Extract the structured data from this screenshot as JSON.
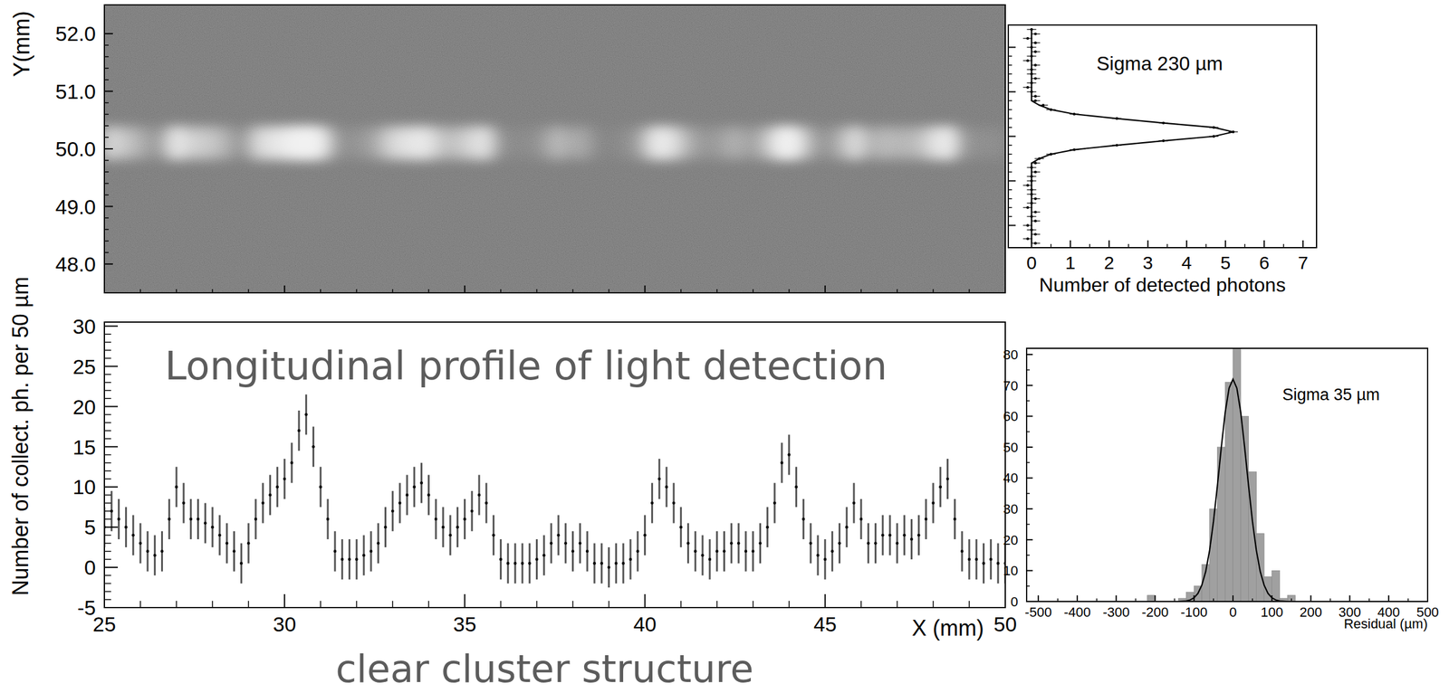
{
  "chart_data": [
    {
      "type": "image",
      "ylabel": "Y(mm)",
      "xlim": [
        25,
        50
      ],
      "ylim": [
        47.5,
        52.5
      ],
      "xticks": [
        25,
        30,
        35,
        40,
        45,
        50
      ],
      "yticks": [
        {
          "value": 48,
          "label": "48.0"
        },
        {
          "value": 49,
          "label": "49.0"
        },
        {
          "value": 50,
          "label": "50.0"
        },
        {
          "value": 51,
          "label": "51.0"
        },
        {
          "value": 52,
          "label": "52.0"
        }
      ],
      "tick_labels": "y",
      "y_center": 50.1
    },
    {
      "type": "scatter",
      "orientation": "horizontal",
      "xlabel": "Number of detected photons",
      "annotations": [
        "Sigma 230 µm"
      ],
      "xlim": [
        -0.6,
        7.35
      ],
      "ylim": [
        47.5,
        52.5
      ],
      "xticks": [
        0,
        1,
        2,
        3,
        4,
        5,
        6,
        7
      ],
      "yticks": [
        48,
        49,
        50,
        51,
        52
      ],
      "tick_labels": "x",
      "y": [
        47.6,
        47.7,
        47.8,
        47.9,
        48,
        48.1,
        48.2,
        48.3,
        48.4,
        48.5,
        48.6,
        48.7,
        48.8,
        48.9,
        49,
        49.1,
        49.2,
        49.3,
        49.4,
        49.5,
        49.6,
        49.7,
        49.8,
        49.9,
        50,
        50.1,
        50.2,
        50.3,
        50.4,
        50.5,
        50.6,
        50.7,
        50.8,
        50.9,
        51,
        51.1,
        51.2,
        51.3,
        51.4,
        51.5,
        51.6,
        51.7,
        51.8,
        51.9,
        52,
        52.1,
        52.2,
        52.3,
        52.4
      ],
      "values": [
        0.1,
        -0.1,
        0.1,
        0,
        -0.1,
        0.1,
        0,
        0.1,
        -0.1,
        0,
        0.1,
        0,
        0,
        -0.1,
        0,
        0,
        0.1,
        0,
        0.1,
        0.2,
        0.5,
        1.1,
        2.2,
        3.4,
        4.7,
        5.2,
        4.7,
        3.4,
        2.2,
        1.1,
        0.5,
        0.3,
        0.1,
        0.1,
        0,
        -0.1,
        0,
        0.1,
        0,
        0,
        0.1,
        -0.1,
        0,
        0.1,
        0,
        0.1,
        -0.1,
        0.1,
        0
      ],
      "error": 0.12,
      "fit_values": [
        0,
        0,
        0,
        0,
        0,
        0,
        0,
        0,
        0,
        0,
        0,
        0,
        0,
        0,
        0,
        0,
        0,
        0,
        0,
        0.2,
        0.5,
        1.1,
        2.2,
        3.4,
        4.7,
        5.2,
        4.7,
        3.4,
        2.2,
        1.1,
        0.5,
        0.2,
        0,
        0,
        0,
        0,
        0,
        0,
        0,
        0,
        0,
        0,
        0,
        0,
        0,
        0,
        0,
        0,
        0
      ]
    },
    {
      "type": "errorbar",
      "xlabel": "X (mm)",
      "ylabel": "Number of collect. ph. per 50 µm",
      "annotations": [
        "Longitudinal profile of light detection",
        "clear cluster structure"
      ],
      "xlim": [
        25,
        50
      ],
      "ylim": [
        -5,
        30.5
      ],
      "xticks": [
        25,
        30,
        35,
        40,
        45,
        50
      ],
      "yticks": [
        -5,
        0,
        5,
        10,
        15,
        20,
        25,
        30
      ],
      "x": [
        25,
        25.2,
        25.4,
        25.6,
        25.8,
        26,
        26.2,
        26.4,
        26.6,
        26.8,
        27,
        27.2,
        27.4,
        27.6,
        27.8,
        28,
        28.2,
        28.4,
        28.6,
        28.8,
        29,
        29.2,
        29.4,
        29.6,
        29.8,
        30,
        30.2,
        30.4,
        30.6,
        30.8,
        31,
        31.2,
        31.4,
        31.6,
        31.8,
        32,
        32.2,
        32.4,
        32.6,
        32.8,
        33,
        33.2,
        33.4,
        33.6,
        33.8,
        34,
        34.2,
        34.4,
        34.6,
        34.8,
        35,
        35.2,
        35.4,
        35.6,
        35.8,
        36,
        36.2,
        36.4,
        36.6,
        36.8,
        37,
        37.2,
        37.4,
        37.6,
        37.8,
        38,
        38.2,
        38.4,
        38.6,
        38.8,
        39,
        39.2,
        39.4,
        39.6,
        39.8,
        40,
        40.2,
        40.4,
        40.6,
        40.8,
        41,
        41.2,
        41.4,
        41.6,
        41.8,
        42,
        42.2,
        42.4,
        42.6,
        42.8,
        43,
        43.2,
        43.4,
        43.6,
        43.8,
        44,
        44.2,
        44.4,
        44.6,
        44.8,
        45,
        45.2,
        45.4,
        45.6,
        45.8,
        46,
        46.2,
        46.4,
        46.6,
        46.8,
        47,
        47.2,
        47.4,
        47.6,
        47.8,
        48,
        48.2,
        48.4,
        48.6,
        48.8,
        49,
        49.2,
        49.4,
        49.6,
        49.8,
        50
      ],
      "values": [
        5,
        7,
        6,
        5,
        4,
        3,
        2,
        1.5,
        2,
        6,
        10,
        8,
        6,
        6,
        5.5,
        5,
        4,
        3,
        2,
        0.5,
        3,
        6,
        8,
        9,
        10,
        11,
        13,
        17,
        19,
        15,
        10,
        6,
        2,
        1,
        1,
        1,
        1.5,
        2,
        3,
        5,
        7,
        8,
        9,
        10,
        10.5,
        9,
        6,
        5,
        4,
        5,
        6,
        7,
        9,
        8,
        4,
        1,
        0.5,
        0.5,
        0.5,
        0.5,
        1,
        1.5,
        3,
        4,
        3,
        2,
        3,
        2,
        0.5,
        0.5,
        0,
        0.5,
        0.5,
        1,
        2,
        4,
        8,
        11,
        10,
        8,
        5,
        3,
        2,
        1.5,
        1,
        2,
        2,
        3,
        3,
        2,
        2,
        3,
        5,
        8,
        13,
        14,
        10,
        6,
        3,
        1.5,
        1,
        2,
        3,
        5,
        8,
        6,
        3,
        3,
        4,
        4,
        3,
        4,
        3.5,
        4,
        6,
        8,
        10,
        11,
        6,
        2,
        1,
        1,
        0.5,
        1,
        0.5,
        0.5
      ],
      "error": 2.5
    },
    {
      "type": "histogram",
      "xlabel": "Residual (µm)",
      "annotations": [
        "Sigma 35 µm"
      ],
      "xlim": [
        -530,
        500
      ],
      "ylim": [
        0,
        82
      ],
      "xticks": [
        -500,
        -400,
        -300,
        -200,
        -100,
        0,
        100,
        200,
        300,
        400,
        500
      ],
      "yticks": [
        0,
        10,
        20,
        30,
        40,
        50,
        60,
        70,
        80
      ],
      "bins": [
        -220,
        -200,
        -180,
        -160,
        -140,
        -120,
        -100,
        -80,
        -60,
        -40,
        -20,
        0,
        20,
        40,
        60,
        80,
        100,
        120,
        140,
        160,
        180
      ],
      "values": [
        2,
        0,
        0,
        0,
        1,
        3,
        5,
        12,
        30,
        50,
        71,
        82,
        60,
        42,
        22,
        8,
        10,
        1,
        2,
        0
      ],
      "color": "#a0a0a0",
      "fit": {
        "x": [
          -150,
          -140,
          -130,
          -120,
          -110,
          -100,
          -90,
          -80,
          -70,
          -60,
          -50,
          -40,
          -30,
          -20,
          -10,
          0,
          10,
          20,
          30,
          40,
          50,
          60,
          70,
          80,
          90,
          100,
          110,
          120,
          130,
          140,
          150
        ],
        "values": [
          0,
          0,
          0.1,
          0.2,
          0.5,
          1.2,
          2.6,
          5.3,
          9.7,
          16.6,
          26,
          37.5,
          49.9,
          61.2,
          69.1,
          72,
          69.1,
          61.2,
          49.9,
          37.5,
          26,
          16.6,
          9.7,
          5.3,
          2.6,
          1.2,
          0.5,
          0.2,
          0.1,
          0,
          0
        ]
      }
    }
  ]
}
